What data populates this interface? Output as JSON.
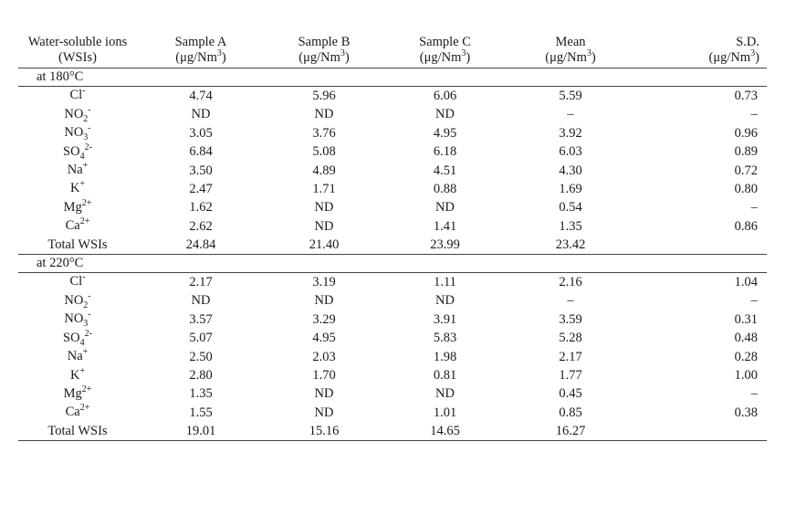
{
  "table": {
    "headers": [
      {
        "line1": "Water-soluble ions",
        "line2": "(WSIs)"
      },
      {
        "line1": "Sample A",
        "line2": "(μg/Nm",
        "sup": "3",
        "close": ")"
      },
      {
        "line1": "Sample B",
        "line2": "(μg/Nm",
        "sup": "3",
        "close": ")"
      },
      {
        "line1": "Sample C",
        "line2": "(μg/Nm",
        "sup": "3",
        "close": ")"
      },
      {
        "line1": "Mean",
        "line2": "(μg/Nm",
        "sup": "3",
        "close": ")"
      },
      {
        "line1": "S.D.",
        "line2": "(μg/Nm",
        "sup": "3",
        "close": ")"
      }
    ],
    "sections": [
      {
        "label": "at 180°C",
        "rows": [
          {
            "ion": "Cl",
            "sub": "",
            "charge": "-",
            "a": "4.74",
            "b": "5.96",
            "c": "6.06",
            "mean": "5.59",
            "sd": "0.73"
          },
          {
            "ion": "NO",
            "sub": "2",
            "charge": "-",
            "a": "ND",
            "b": "ND",
            "c": "ND",
            "mean": "–",
            "sd": "–"
          },
          {
            "ion": "NO",
            "sub": "3",
            "charge": "-",
            "a": "3.05",
            "b": "3.76",
            "c": "4.95",
            "mean": "3.92",
            "sd": "0.96"
          },
          {
            "ion": "SO",
            "sub": "4",
            "charge": "2-",
            "a": "6.84",
            "b": "5.08",
            "c": "6.18",
            "mean": "6.03",
            "sd": "0.89"
          },
          {
            "ion": "Na",
            "sub": "",
            "charge": "+",
            "a": "3.50",
            "b": "4.89",
            "c": "4.51",
            "mean": "4.30",
            "sd": "0.72"
          },
          {
            "ion": "K",
            "sub": "",
            "charge": "+",
            "a": "2.47",
            "b": "1.71",
            "c": "0.88",
            "mean": "1.69",
            "sd": "0.80"
          },
          {
            "ion": "Mg",
            "sub": "",
            "charge": "2+",
            "a": "1.62",
            "b": "ND",
            "c": "ND",
            "mean": "0.54",
            "sd": "–"
          },
          {
            "ion": "Ca",
            "sub": "",
            "charge": "2+",
            "a": "2.62",
            "b": "ND",
            "c": "1.41",
            "mean": "1.35",
            "sd": "0.86"
          }
        ],
        "total": {
          "label": "Total WSIs",
          "a": "24.84",
          "b": "21.40",
          "c": "23.99",
          "mean": "23.42",
          "sd": ""
        }
      },
      {
        "label": "at 220°C",
        "rows": [
          {
            "ion": "Cl",
            "sub": "",
            "charge": "-",
            "a": "2.17",
            "b": "3.19",
            "c": "1.11",
            "mean": "2.16",
            "sd": "1.04"
          },
          {
            "ion": "NO",
            "sub": "2",
            "charge": "-",
            "a": "ND",
            "b": "ND",
            "c": "ND",
            "mean": "–",
            "sd": "–"
          },
          {
            "ion": "NO",
            "sub": "3",
            "charge": "-",
            "a": "3.57",
            "b": "3.29",
            "c": "3.91",
            "mean": "3.59",
            "sd": "0.31"
          },
          {
            "ion": "SO",
            "sub": "4",
            "charge": "2-",
            "a": "5.07",
            "b": "4.95",
            "c": "5.83",
            "mean": "5.28",
            "sd": "0.48"
          },
          {
            "ion": "Na",
            "sub": "",
            "charge": "+",
            "a": "2.50",
            "b": "2.03",
            "c": "1.98",
            "mean": "2.17",
            "sd": "0.28"
          },
          {
            "ion": "K",
            "sub": "",
            "charge": "+",
            "a": "2.80",
            "b": "1.70",
            "c": "0.81",
            "mean": "1.77",
            "sd": "1.00"
          },
          {
            "ion": "Mg",
            "sub": "",
            "charge": "2+",
            "a": "1.35",
            "b": "ND",
            "c": "ND",
            "mean": "0.45",
            "sd": "–"
          },
          {
            "ion": "Ca",
            "sub": "",
            "charge": "2+",
            "a": "1.55",
            "b": "ND",
            "c": "1.01",
            "mean": "0.85",
            "sd": "0.38"
          }
        ],
        "total": {
          "label": "Total WSIs",
          "a": "19.01",
          "b": "15.16",
          "c": "14.65",
          "mean": "16.27",
          "sd": ""
        }
      }
    ]
  }
}
